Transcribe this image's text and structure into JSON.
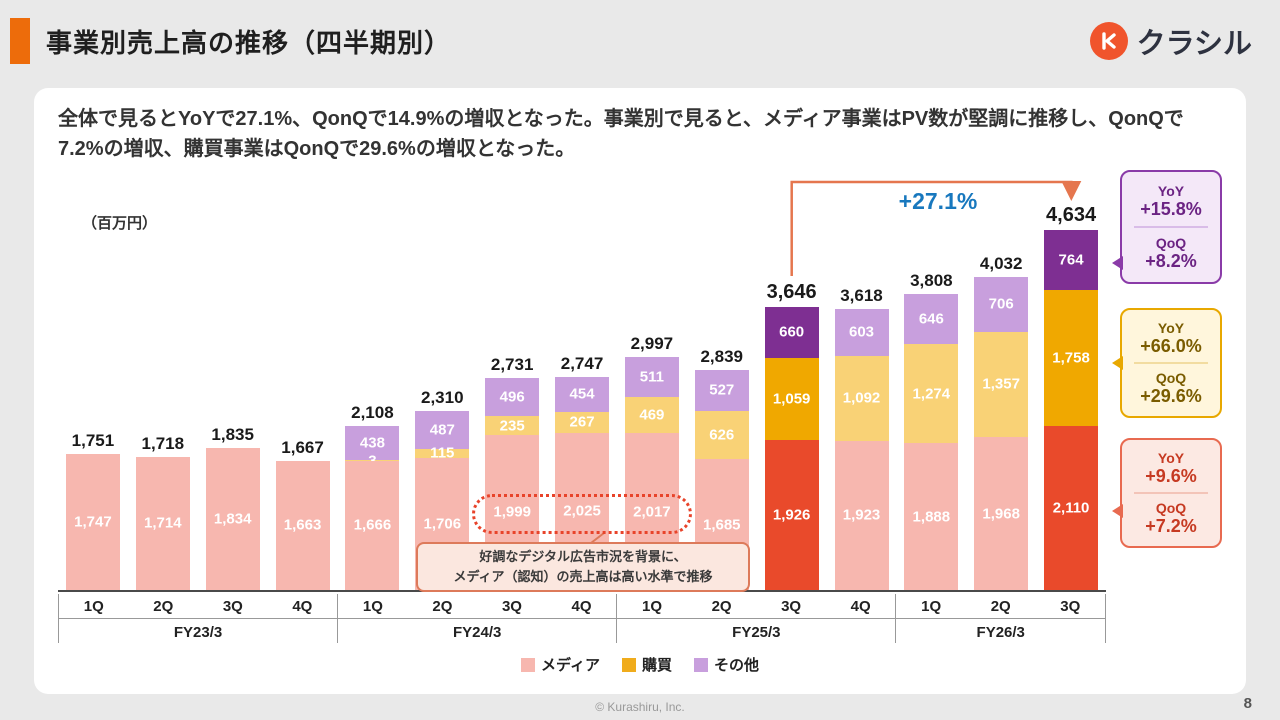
{
  "header": {
    "title": "事業別売上高の推移（四半期別）",
    "logo_text": "クラシル"
  },
  "summary": "全体で見るとYoYで27.1%、QonQで14.9%の増収となった。事業別で見ると、メディア事業はPV数が堅調に推移し、QonQで7.2%の増収、購買事業はQonQで29.6%の増収となった。",
  "theme": {
    "accent_orange": "#ED6C0B",
    "logo_orange": "#F0542C",
    "growth_blue": "#1878BE",
    "arrow_orange": "#E5764E",
    "card_bg": "#FFFFFF",
    "page_bg": "#E9E9E9"
  },
  "chart_data": {
    "type": "bar",
    "stacked": true,
    "unit_label": "（百万円）",
    "ylim": [
      0,
      4800
    ],
    "legend": [
      {
        "name": "メディア",
        "color": "#F7B7AF"
      },
      {
        "name": "購買",
        "color": "#F0AC1C"
      },
      {
        "name": "その他",
        "color": "#C89FDD"
      }
    ],
    "colors": {
      "media": "#F7B7AF",
      "media_highlight": "#E94A2B",
      "kobai": "#F9D276",
      "kobai_highlight": "#F0A800",
      "sonota": "#C89FDD",
      "sonota_highlight": "#7E2F92"
    },
    "groups": [
      {
        "label": "FY23/3",
        "bars": [
          {
            "quarter": "1Q",
            "total": 1751,
            "total_label": "1,751",
            "segments": [
              {
                "series": "メディア",
                "key": "media",
                "value": 1747,
                "label": "1,747"
              }
            ]
          },
          {
            "quarter": "2Q",
            "total": 1718,
            "total_label": "1,718",
            "segments": [
              {
                "series": "メディア",
                "key": "media",
                "value": 1714,
                "label": "1,714"
              }
            ]
          },
          {
            "quarter": "3Q",
            "total": 1835,
            "total_label": "1,835",
            "segments": [
              {
                "series": "メディア",
                "key": "media",
                "value": 1834,
                "label": "1,834"
              }
            ]
          },
          {
            "quarter": "4Q",
            "total": 1667,
            "total_label": "1,667",
            "segments": [
              {
                "series": "メディア",
                "key": "media",
                "value": 1663,
                "label": "1,663"
              }
            ]
          }
        ]
      },
      {
        "label": "FY24/3",
        "bars": [
          {
            "quarter": "1Q",
            "total": 2108,
            "total_label": "2,108",
            "segments": [
              {
                "series": "メディア",
                "key": "media",
                "value": 1666,
                "label": "1,666"
              },
              {
                "series": "購買",
                "key": "kobai",
                "value": 3,
                "label": "3"
              },
              {
                "series": "その他",
                "key": "sonota",
                "value": 438,
                "label": "438"
              }
            ]
          },
          {
            "quarter": "2Q",
            "total": 2310,
            "total_label": "2,310",
            "segments": [
              {
                "series": "メディア",
                "key": "media",
                "value": 1706,
                "label": "1,706"
              },
              {
                "series": "購買",
                "key": "kobai",
                "value": 115,
                "label": "115"
              },
              {
                "series": "その他",
                "key": "sonota",
                "value": 487,
                "label": "487"
              }
            ]
          },
          {
            "quarter": "3Q",
            "total": 2731,
            "total_label": "2,731",
            "segments": [
              {
                "series": "メディア",
                "key": "media",
                "value": 1999,
                "label": "1,999"
              },
              {
                "series": "購買",
                "key": "kobai",
                "value": 235,
                "label": "235"
              },
              {
                "series": "その他",
                "key": "sonota",
                "value": 496,
                "label": "496"
              }
            ]
          },
          {
            "quarter": "4Q",
            "total": 2747,
            "total_label": "2,747",
            "segments": [
              {
                "series": "メディア",
                "key": "media",
                "value": 2025,
                "label": "2,025"
              },
              {
                "series": "購買",
                "key": "kobai",
                "value": 267,
                "label": "267"
              },
              {
                "series": "その他",
                "key": "sonota",
                "value": 454,
                "label": "454"
              }
            ]
          }
        ]
      },
      {
        "label": "FY25/3",
        "bars": [
          {
            "quarter": "1Q",
            "total": 2997,
            "total_label": "2,997",
            "segments": [
              {
                "series": "メディア",
                "key": "media",
                "value": 2017,
                "label": "2,017"
              },
              {
                "series": "購買",
                "key": "kobai",
                "value": 469,
                "label": "469"
              },
              {
                "series": "その他",
                "key": "sonota",
                "value": 511,
                "label": "511"
              }
            ]
          },
          {
            "quarter": "2Q",
            "total": 2839,
            "total_label": "2,839",
            "segments": [
              {
                "series": "メディア",
                "key": "media",
                "value": 1685,
                "label": "1,685"
              },
              {
                "series": "購買",
                "key": "kobai",
                "value": 626,
                "label": "626"
              },
              {
                "series": "その他",
                "key": "sonota",
                "value": 527,
                "label": "527"
              }
            ]
          },
          {
            "quarter": "3Q",
            "total": 3646,
            "total_label": "3,646",
            "highlight": true,
            "segments": [
              {
                "series": "メディア",
                "key": "media",
                "value": 1926,
                "label": "1,926"
              },
              {
                "series": "購買",
                "key": "kobai",
                "value": 1059,
                "label": "1,059"
              },
              {
                "series": "その他",
                "key": "sonota",
                "value": 660,
                "label": "660"
              }
            ]
          },
          {
            "quarter": "4Q",
            "total": 3618,
            "total_label": "3,618",
            "segments": [
              {
                "series": "メディア",
                "key": "media",
                "value": 1923,
                "label": "1,923"
              },
              {
                "series": "購買",
                "key": "kobai",
                "value": 1092,
                "label": "1,092"
              },
              {
                "series": "その他",
                "key": "sonota",
                "value": 603,
                "label": "603"
              }
            ]
          }
        ]
      },
      {
        "label": "FY26/3",
        "bars": [
          {
            "quarter": "1Q",
            "total": 3808,
            "total_label": "3,808",
            "segments": [
              {
                "series": "メディア",
                "key": "media",
                "value": 1888,
                "label": "1,888"
              },
              {
                "series": "購買",
                "key": "kobai",
                "value": 1274,
                "label": "1,274"
              },
              {
                "series": "その他",
                "key": "sonota",
                "value": 646,
                "label": "646"
              }
            ]
          },
          {
            "quarter": "2Q",
            "total": 4032,
            "total_label": "4,032",
            "segments": [
              {
                "series": "メディア",
                "key": "media",
                "value": 1968,
                "label": "1,968"
              },
              {
                "series": "購買",
                "key": "kobai",
                "value": 1357,
                "label": "1,357"
              },
              {
                "series": "その他",
                "key": "sonota",
                "value": 706,
                "label": "706"
              }
            ]
          },
          {
            "quarter": "3Q",
            "total": 4634,
            "total_label": "4,634",
            "highlight": true,
            "segments": [
              {
                "series": "メディア",
                "key": "media",
                "value": 2110,
                "label": "2,110"
              },
              {
                "series": "購買",
                "key": "kobai",
                "value": 1758,
                "label": "1,758"
              },
              {
                "series": "その他",
                "key": "sonota",
                "value": 764,
                "label": "764"
              }
            ]
          }
        ]
      }
    ],
    "annotations": {
      "growth_arrow_label": "+27.1%",
      "note_line1": "好調なデジタル広告市況を背景に、",
      "note_line2": "メディア（認知）の売上高は高い水準で推移",
      "callouts": [
        {
          "series": "その他",
          "period_yoy": "YoY",
          "yoy": "+15.8%",
          "period_qoq": "QoQ",
          "qoq": "+8.2%"
        },
        {
          "series": "購買",
          "period_yoy": "YoY",
          "yoy": "+66.0%",
          "period_qoq": "QoQ",
          "qoq": "+29.6%"
        },
        {
          "series": "メディア",
          "period_yoy": "YoY",
          "yoy": "+9.6%",
          "period_qoq": "QoQ",
          "qoq": "+7.2%"
        }
      ]
    }
  },
  "footer": {
    "copyright": "© Kurashiru, Inc.",
    "page_number": "8"
  }
}
